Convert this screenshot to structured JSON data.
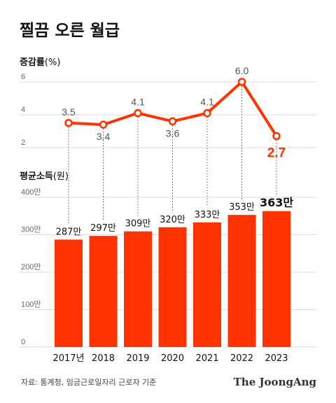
{
  "title": "찔끔 오른 월급",
  "source": "자료: 통계청, 임금근로일자리 근로자 기준",
  "logo": "The JoongAng",
  "colors": {
    "accent": "#ff3300",
    "text": "#111111",
    "grid": "#dddddd"
  },
  "chart_data": [
    {
      "type": "line",
      "title": "증감률",
      "unit": "(%)",
      "categories": [
        "2017년",
        "2018",
        "2019",
        "2020",
        "2021",
        "2022",
        "2023"
      ],
      "values": [
        3.5,
        3.4,
        4.1,
        3.6,
        4.1,
        6.0,
        2.7
      ],
      "value_labels": [
        "3.5",
        "3.4",
        "4.1",
        "3.6",
        "4.1",
        "6.0",
        "2.7"
      ],
      "yticks": [
        "2",
        "4",
        "6"
      ],
      "ylim": [
        2,
        6
      ],
      "grid": true
    },
    {
      "type": "bar",
      "title": "평균소득",
      "unit": "(원)",
      "categories": [
        "2017년",
        "2018",
        "2019",
        "2020",
        "2021",
        "2022",
        "2023"
      ],
      "values": [
        287,
        297,
        309,
        320,
        333,
        353,
        363
      ],
      "value_labels": [
        "287만",
        "297만",
        "309만",
        "320만",
        "333만",
        "353만",
        "363만"
      ],
      "yticks": [
        "0",
        "100만",
        "200만",
        "300만",
        "400만"
      ],
      "ylim": [
        0,
        400
      ],
      "grid": true
    }
  ]
}
